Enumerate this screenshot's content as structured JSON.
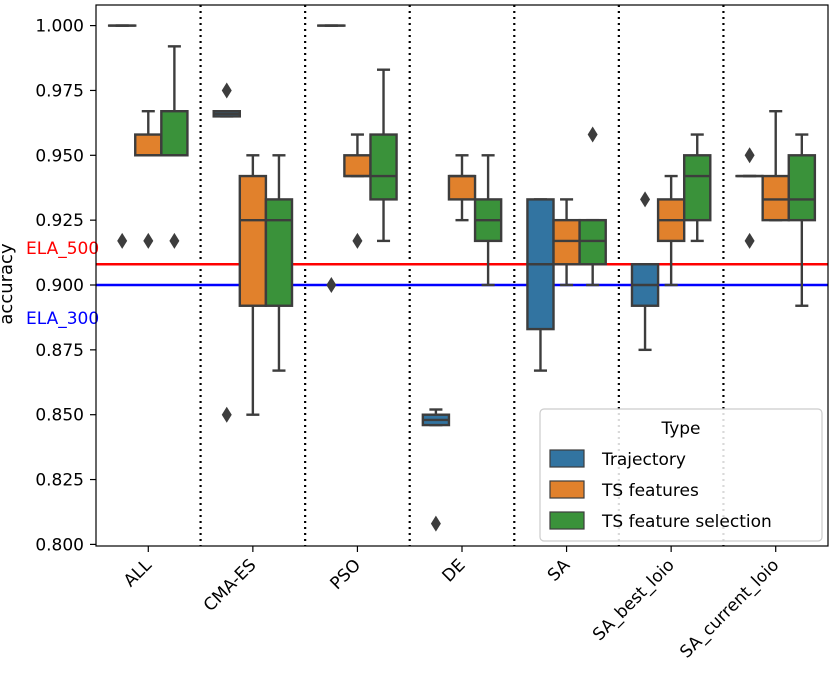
{
  "chart_data": {
    "type": "box",
    "ylabel": "accuracy",
    "ylim": [
      0.8,
      1.0
    ],
    "yticks": [
      "0.800",
      "0.825",
      "0.850",
      "0.875",
      "0.900",
      "0.925",
      "0.950",
      "0.975",
      "1.000"
    ],
    "categories": [
      "ALL",
      "CMA-ES",
      "PSO",
      "DE",
      "SA",
      "SA_best_loio",
      "SA_current_loio"
    ],
    "legend": {
      "title": "Type",
      "position": "lower-right",
      "entries": [
        {
          "name": "Trajectory",
          "color": "#3274a1"
        },
        {
          "name": "TS features",
          "color": "#e1812c"
        },
        {
          "name": "TS feature selection",
          "color": "#3a923a"
        }
      ]
    },
    "reference_lines": [
      {
        "label": "ELA_500",
        "value": 0.908,
        "color": "#ff0000"
      },
      {
        "label": "ELA_300",
        "value": 0.9,
        "color": "#0000ff"
      }
    ],
    "series": [
      {
        "name": "Trajectory",
        "boxes": [
          {
            "q1": 1.0,
            "median": 1.0,
            "q3": 1.0,
            "whisker_low": 1.0,
            "whisker_high": 1.0,
            "outliers": [
              0.917
            ]
          },
          {
            "q1": 0.965,
            "median": 0.966,
            "q3": 0.967,
            "whisker_low": 0.965,
            "whisker_high": 0.967,
            "outliers": [
              0.975,
              0.85
            ]
          },
          {
            "q1": 1.0,
            "median": 1.0,
            "q3": 1.0,
            "whisker_low": 1.0,
            "whisker_high": 1.0,
            "outliers": [
              0.9
            ]
          },
          {
            "q1": 0.846,
            "median": 0.848,
            "q3": 0.85,
            "whisker_low": 0.846,
            "whisker_high": 0.852,
            "outliers": [
              0.808
            ]
          },
          {
            "q1": 0.883,
            "median": 0.908,
            "q3": 0.933,
            "whisker_low": 0.867,
            "whisker_high": 0.933,
            "outliers": []
          },
          {
            "q1": 0.892,
            "median": 0.9,
            "q3": 0.908,
            "whisker_low": 0.875,
            "whisker_high": 0.908,
            "outliers": [
              0.933
            ]
          },
          {
            "q1": 0.942,
            "median": 0.942,
            "q3": 0.942,
            "whisker_low": 0.942,
            "whisker_high": 0.942,
            "outliers": [
              0.95,
              0.917
            ]
          }
        ]
      },
      {
        "name": "TS features",
        "boxes": [
          {
            "q1": 0.95,
            "median": 0.95,
            "q3": 0.958,
            "whisker_low": 0.95,
            "whisker_high": 0.967,
            "outliers": [
              0.917
            ]
          },
          {
            "q1": 0.892,
            "median": 0.925,
            "q3": 0.942,
            "whisker_low": 0.85,
            "whisker_high": 0.95,
            "outliers": []
          },
          {
            "q1": 0.942,
            "median": 0.942,
            "q3": 0.95,
            "whisker_low": 0.942,
            "whisker_high": 0.958,
            "outliers": [
              0.917
            ]
          },
          {
            "q1": 0.933,
            "median": 0.942,
            "q3": 0.942,
            "whisker_low": 0.925,
            "whisker_high": 0.95,
            "outliers": []
          },
          {
            "q1": 0.908,
            "median": 0.917,
            "q3": 0.925,
            "whisker_low": 0.9,
            "whisker_high": 0.933,
            "outliers": []
          },
          {
            "q1": 0.917,
            "median": 0.925,
            "q3": 0.933,
            "whisker_low": 0.9,
            "whisker_high": 0.942,
            "outliers": []
          },
          {
            "q1": 0.925,
            "median": 0.933,
            "q3": 0.942,
            "whisker_low": 0.925,
            "whisker_high": 0.967,
            "outliers": []
          }
        ]
      },
      {
        "name": "TS feature selection",
        "boxes": [
          {
            "q1": 0.95,
            "median": 0.95,
            "q3": 0.967,
            "whisker_low": 0.95,
            "whisker_high": 0.992,
            "outliers": [
              0.917
            ]
          },
          {
            "q1": 0.892,
            "median": 0.925,
            "q3": 0.933,
            "whisker_low": 0.867,
            "whisker_high": 0.95,
            "outliers": []
          },
          {
            "q1": 0.933,
            "median": 0.942,
            "q3": 0.958,
            "whisker_low": 0.917,
            "whisker_high": 0.983,
            "outliers": []
          },
          {
            "q1": 0.917,
            "median": 0.925,
            "q3": 0.933,
            "whisker_low": 0.9,
            "whisker_high": 0.95,
            "outliers": []
          },
          {
            "q1": 0.908,
            "median": 0.917,
            "q3": 0.925,
            "whisker_low": 0.9,
            "whisker_high": 0.925,
            "outliers": [
              0.958
            ]
          },
          {
            "q1": 0.925,
            "median": 0.942,
            "q3": 0.95,
            "whisker_low": 0.917,
            "whisker_high": 0.958,
            "outliers": []
          },
          {
            "q1": 0.925,
            "median": 0.933,
            "q3": 0.95,
            "whisker_low": 0.892,
            "whisker_high": 0.958,
            "outliers": []
          }
        ]
      }
    ]
  }
}
